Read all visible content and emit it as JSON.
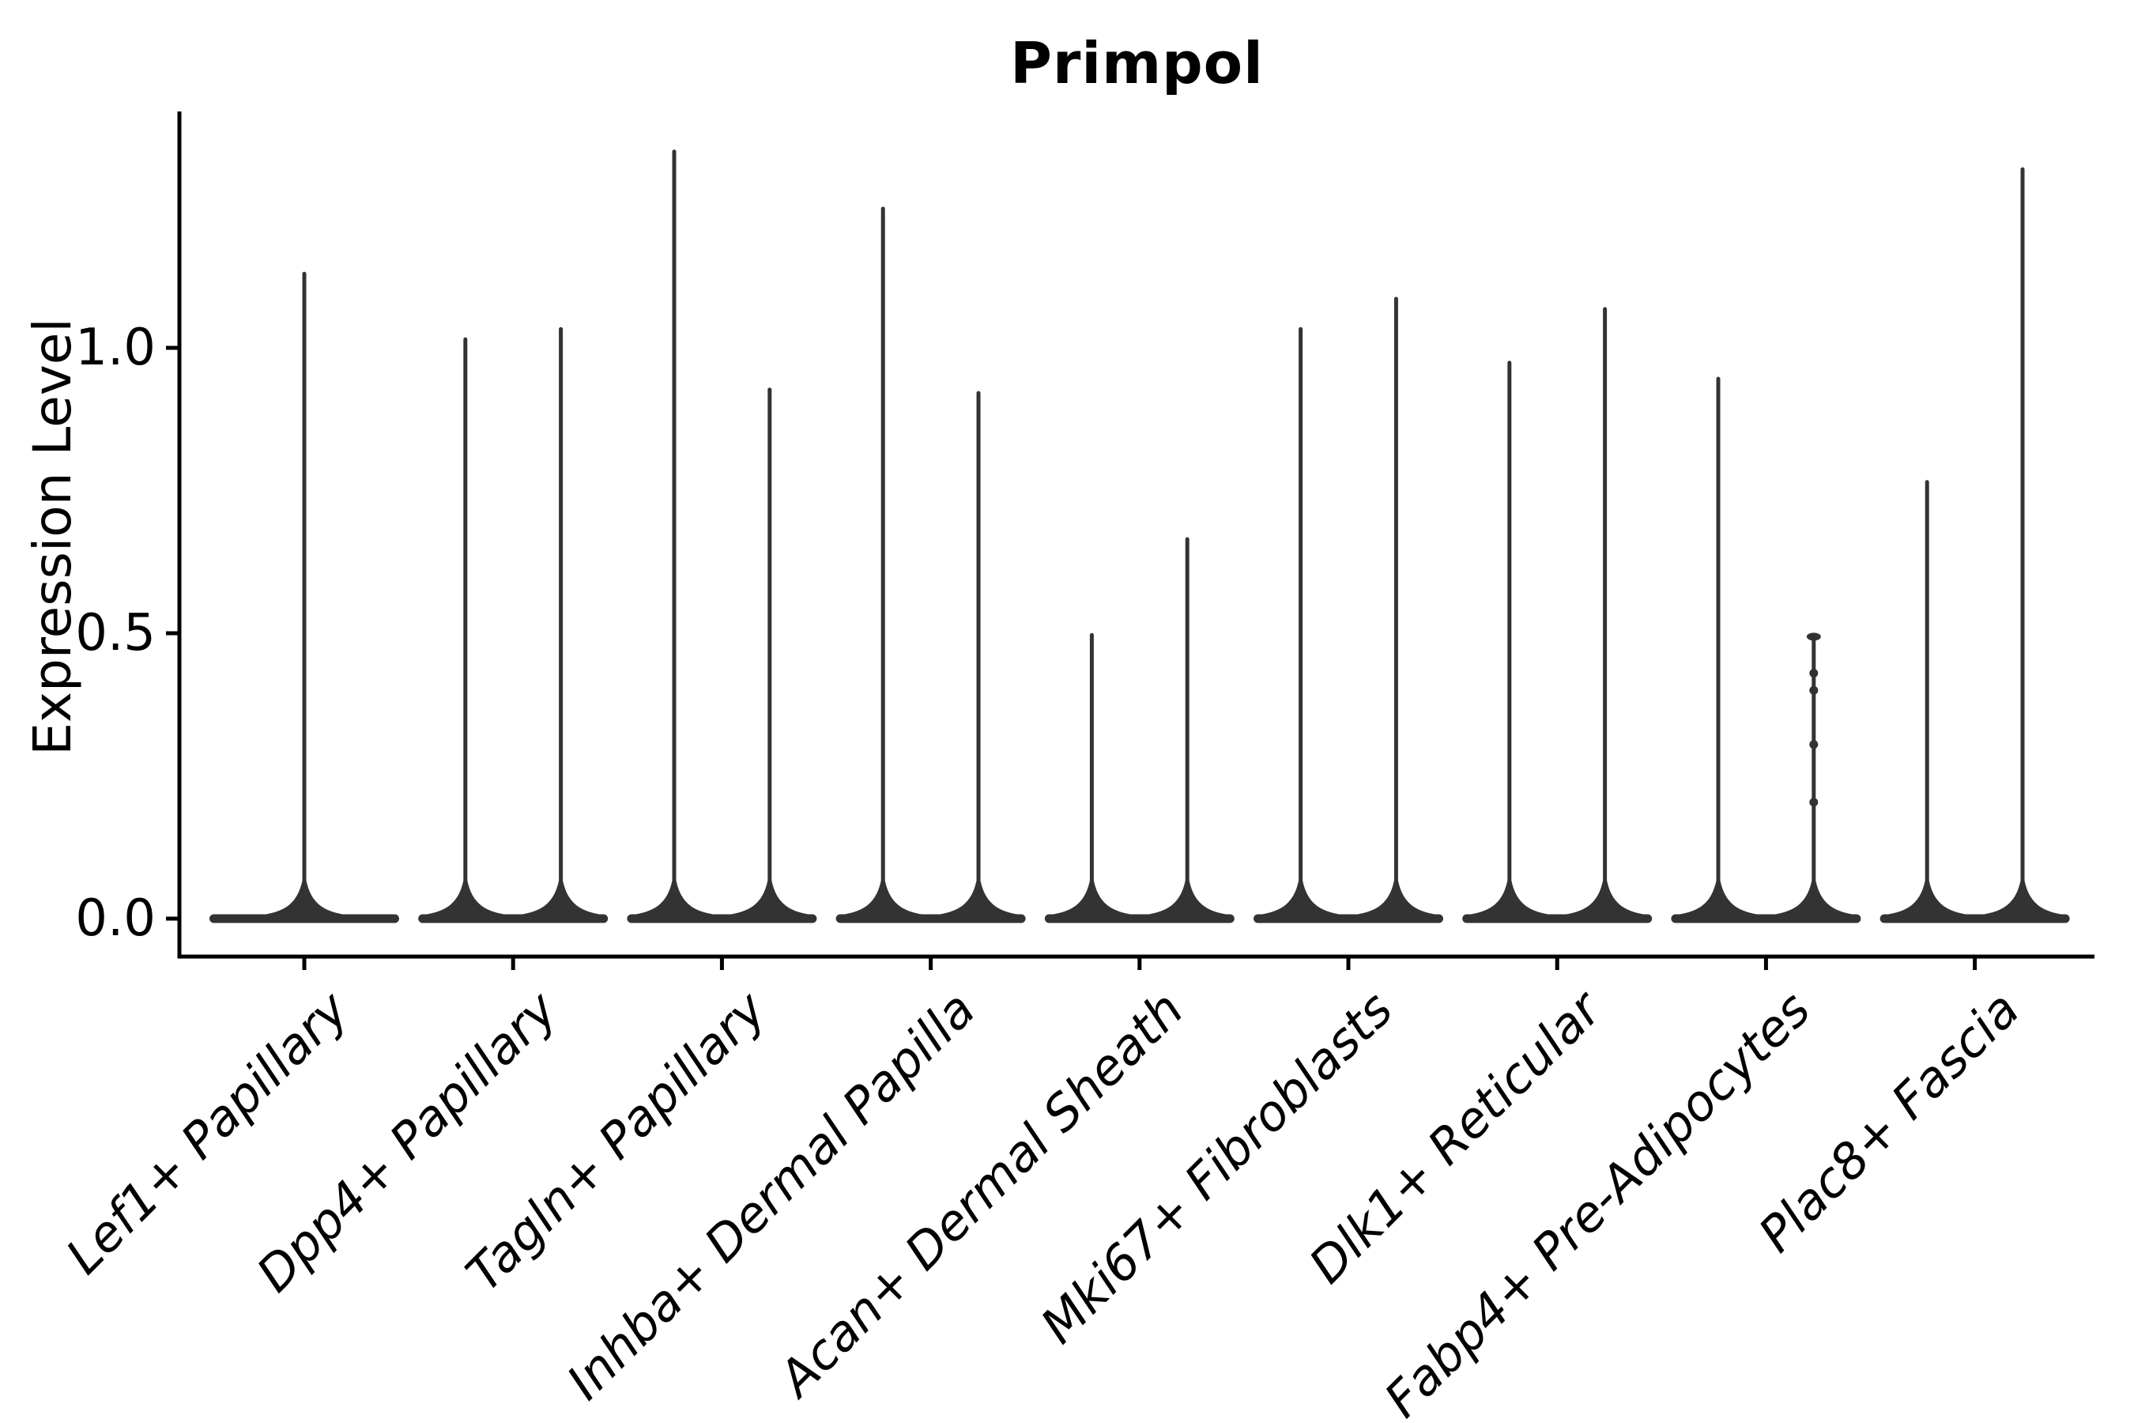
{
  "title": "Primpol",
  "y_axis": {
    "label": "Expression Level",
    "tick_labels": [
      "0.0",
      "0.5",
      "1.0"
    ],
    "tick_values": [
      0.0,
      0.5,
      1.0
    ]
  },
  "colors": {
    "background": "#ffffff",
    "violin": "#333333",
    "spine": "#000000",
    "text": "#000000"
  },
  "chart_data": {
    "type": "violin",
    "title": "Primpol",
    "xlabel": "",
    "ylabel": "Expression Level",
    "ylim": [
      -0.066,
      1.414
    ],
    "yticks": [
      0.0,
      0.5,
      1.0
    ],
    "grid": false,
    "legend": "none",
    "style": "thin spike violins, nearly all mass at 0, two violins per category except first",
    "categories": [
      "Lef1+ Papillary",
      "Dpp4+ Papillary",
      "Tagln+ Papillary",
      "Inhba+ Dermal Papilla",
      "Acan+ Dermal Sheath",
      "Mki67+ Fibroblasts",
      "Dlk1+ Reticular",
      "Fabp4+ Pre-Adipocytes",
      "Plac8+ Fascia"
    ],
    "violin_max_expression": [
      [
        1.134
      ],
      [
        1.019,
        1.037
      ],
      [
        1.348,
        0.931
      ],
      [
        1.248,
        0.925
      ],
      [
        0.501,
        0.669
      ],
      [
        1.037,
        1.09
      ],
      [
        0.978,
        1.072
      ],
      [
        0.95,
        0.494
      ],
      [
        0.769,
        1.317
      ]
    ],
    "baseline_value": 0.0,
    "scatter_points": {
      "category": "Fabp4+ Pre-Adipocytes",
      "violin_index": 1,
      "values": [
        0.43,
        0.4,
        0.305,
        0.204
      ]
    }
  }
}
